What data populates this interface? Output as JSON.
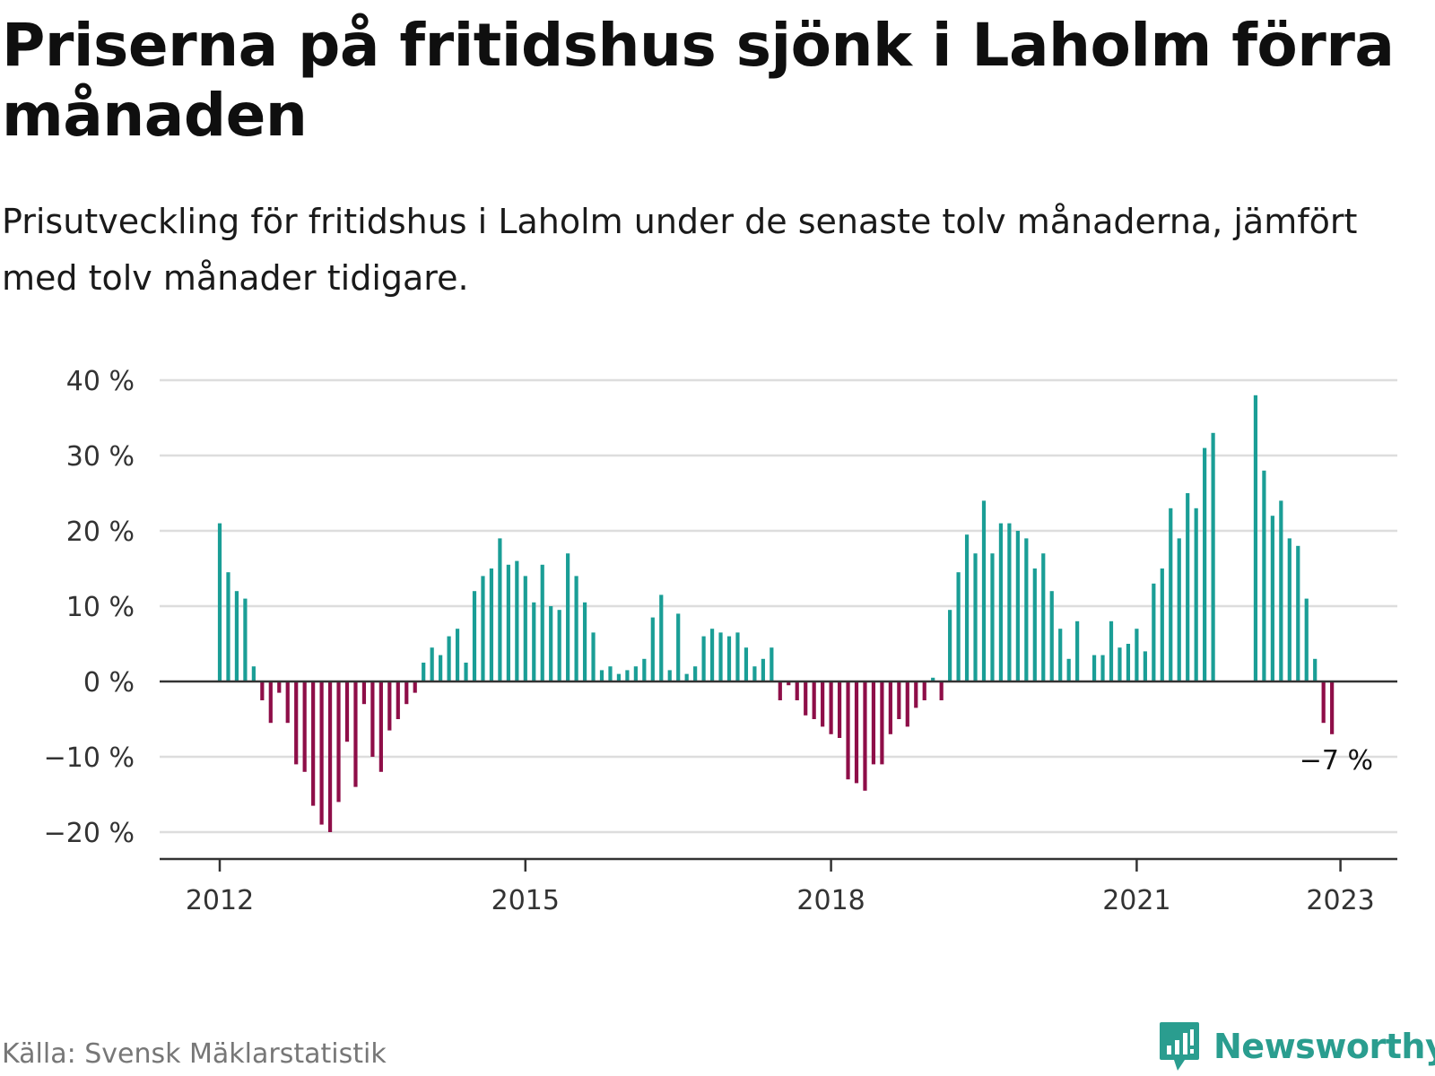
{
  "title": "Priserna på fritidshus sjönk i Laholm förra månaden",
  "subtitle": "Prisutveckling för fritidshus i Laholm under de senaste tolv månaderna, jämfört med tolv månader tidigare.",
  "source": "Källa: Svensk Mäklarstatistik",
  "brand": "Newsworthy",
  "colors": {
    "positive": "#1a9e96",
    "negative": "#8e0e48",
    "grid": "#dddddd",
    "axis": "#333333",
    "brand": "#2a9d8f"
  },
  "chart_data": {
    "type": "bar",
    "title": "",
    "xlabel": "",
    "ylabel": "",
    "ylim": [
      -23,
      40
    ],
    "yticks": [
      40,
      30,
      20,
      10,
      0,
      -10,
      -20
    ],
    "ytick_labels": [
      "40 %",
      "30 %",
      "20 %",
      "10 %",
      "0 %",
      "−10 %",
      "−20 %"
    ],
    "xticks": [
      "2012",
      "2015",
      "2018",
      "2021",
      "2023"
    ],
    "grid": true,
    "start": "2012-01",
    "annotation": {
      "label": "−7 %",
      "value": -7
    },
    "series": [
      {
        "values": [
          21,
          14.5,
          12,
          11,
          2,
          -2.5,
          -5.5,
          -1.5,
          -5.5,
          -11,
          -12,
          -16.5,
          -19,
          -20,
          -16,
          -8,
          -14,
          -3,
          -10,
          -12,
          -6.5,
          -5,
          -3,
          -1.5,
          2.5,
          4.5,
          3.5,
          6,
          7,
          2.5,
          12,
          14,
          15,
          19,
          15.5,
          16,
          14,
          10.5,
          15.5,
          10,
          9.5,
          17,
          14,
          10.5,
          6.5,
          1.5,
          2,
          1,
          1.5,
          2,
          3,
          8.5,
          11.5,
          1.5,
          9,
          1,
          2,
          6,
          7,
          6.5,
          6,
          6.5,
          4.5,
          2,
          3,
          4.5,
          -2.5,
          -0.5,
          -2.5,
          -4.5,
          -5,
          -6,
          -7,
          -7.5,
          -13,
          -13.5,
          -14.5,
          -11,
          -11,
          -7,
          -5,
          -6,
          -3.5,
          -2.5,
          0.5,
          -2.5,
          9.5,
          14.5,
          19.5,
          17,
          24,
          17,
          21,
          21,
          20,
          19,
          15,
          17,
          12,
          7,
          3,
          8,
          0,
          3.5,
          3.5,
          8,
          4.5,
          5,
          7,
          4,
          13,
          15,
          23,
          19,
          25,
          23,
          31,
          33,
          0,
          0,
          0,
          0,
          38,
          28,
          22,
          24,
          19,
          18,
          11,
          3,
          -5.5,
          -7
        ]
      }
    ]
  }
}
